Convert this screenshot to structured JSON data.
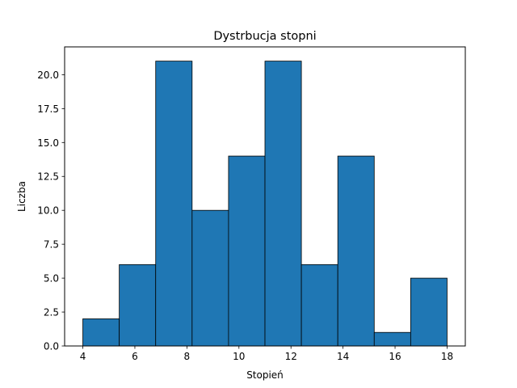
{
  "chart_data": {
    "type": "bar",
    "title": "Dystrbucja stopni",
    "xlabel": "Stopień",
    "ylabel": "Liczba",
    "bin_edges": [
      4.0,
      5.4,
      6.8,
      8.2,
      9.6,
      11.0,
      12.4,
      13.8,
      15.2,
      16.6,
      18.0
    ],
    "values": [
      2,
      6,
      21,
      10,
      14,
      21,
      6,
      14,
      1,
      5
    ],
    "xlim": [
      3.3,
      18.7
    ],
    "ylim": [
      0,
      22.05
    ],
    "xticks": [
      4,
      6,
      8,
      10,
      12,
      14,
      16,
      18
    ],
    "yticks": [
      0.0,
      2.5,
      5.0,
      7.5,
      10.0,
      12.5,
      15.0,
      17.5,
      20.0
    ],
    "xtick_labels": [
      "4",
      "6",
      "8",
      "10",
      "12",
      "14",
      "16",
      "18"
    ],
    "ytick_labels": [
      "0.0",
      "2.5",
      "5.0",
      "7.5",
      "10.0",
      "12.5",
      "15.0",
      "17.5",
      "20.0"
    ],
    "bar_color": "#1f77b4",
    "edge_color": "#000000",
    "grid": false,
    "legend": "none"
  }
}
